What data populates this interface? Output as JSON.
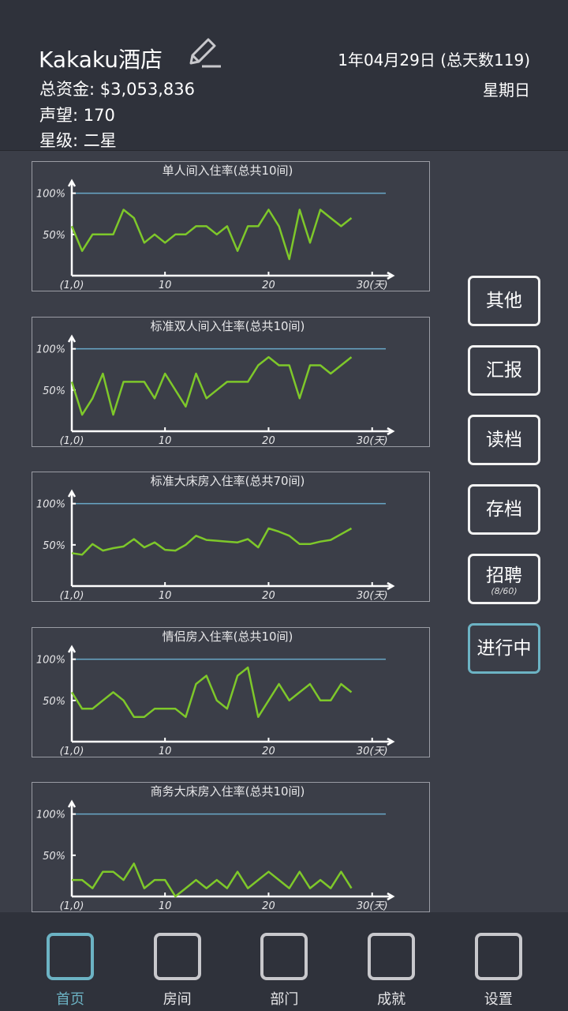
{
  "header": {
    "hotel_name": "Kakaku酒店",
    "funds": "总资金: $3,053,836",
    "reputation": "声望: 170",
    "rating": "星级: 二星",
    "date": "1年04月29日 (总天数119)",
    "weekday": "星期日"
  },
  "buttons": [
    "其他",
    "汇报",
    "读档",
    "存档",
    {
      "label": "招聘",
      "sub": "(8/60)"
    },
    "进行中"
  ],
  "nav": [
    "首页",
    "房间",
    "部门",
    "成就",
    "设置"
  ],
  "chart_data": [
    {
      "type": "line",
      "title": "单人间入住率(总共10间)",
      "color": "#7ec82a",
      "x": [
        1,
        2,
        3,
        4,
        5,
        6,
        7,
        8,
        9,
        10,
        11,
        12,
        13,
        14,
        15,
        16,
        17,
        18,
        19,
        20,
        21,
        22,
        23,
        24,
        25,
        26,
        27,
        28
      ],
      "values": [
        60,
        30,
        50,
        50,
        50,
        80,
        70,
        40,
        50,
        40,
        50,
        50,
        60,
        60,
        50,
        60,
        30,
        60,
        60,
        80,
        60,
        20,
        80,
        40,
        80,
        70,
        60,
        70
      ],
      "xlim": [
        1,
        32
      ],
      "ylim": [
        0,
        115
      ],
      "xticks": [
        {
          "value": 1,
          "label": "(1,0)"
        },
        10,
        20,
        {
          "value": 30,
          "label": "30(天)"
        }
      ],
      "yticks": [
        {
          "value": 50,
          "label": "50%"
        },
        {
          "value": 100,
          "label": "100%"
        }
      ]
    },
    {
      "type": "line",
      "title": "标准双人间入住率(总共10间)",
      "color": "#7ec82a",
      "x": [
        1,
        2,
        3,
        4,
        5,
        6,
        7,
        8,
        9,
        10,
        11,
        12,
        13,
        14,
        15,
        16,
        17,
        18,
        19,
        20,
        21,
        22,
        23,
        24,
        25,
        26,
        27,
        28
      ],
      "values": [
        60,
        20,
        40,
        70,
        20,
        60,
        60,
        60,
        40,
        70,
        50,
        30,
        70,
        40,
        50,
        60,
        60,
        60,
        80,
        90,
        80,
        80,
        40,
        80,
        80,
        70,
        80,
        90
      ],
      "xlim": [
        1,
        32
      ],
      "ylim": [
        0,
        115
      ],
      "xticks": [
        {
          "value": 1,
          "label": "(1,0)"
        },
        10,
        20,
        {
          "value": 30,
          "label": "30(天)"
        }
      ],
      "yticks": [
        {
          "value": 50,
          "label": "50%"
        },
        {
          "value": 100,
          "label": "100%"
        }
      ]
    },
    {
      "type": "line",
      "title": "标准大床房入住率(总共70间)",
      "color": "#7ec82a",
      "x": [
        1,
        2,
        3,
        4,
        5,
        6,
        7,
        8,
        9,
        10,
        11,
        12,
        13,
        14,
        15,
        16,
        17,
        18,
        19,
        20,
        21,
        22,
        23,
        24,
        25,
        26,
        27,
        28
      ],
      "values": [
        40,
        38,
        51,
        43,
        46,
        48,
        57,
        47,
        53,
        44,
        43,
        50,
        61,
        56,
        55,
        54,
        53,
        57,
        47,
        70,
        66,
        61,
        51,
        51,
        54,
        56,
        63,
        70
      ],
      "xlim": [
        1,
        32
      ],
      "ylim": [
        0,
        115
      ],
      "xticks": [
        {
          "value": 1,
          "label": "(1,0)"
        },
        10,
        20,
        {
          "value": 30,
          "label": "30(天)"
        }
      ],
      "yticks": [
        {
          "value": 50,
          "label": "50%"
        },
        {
          "value": 100,
          "label": "100%"
        }
      ]
    },
    {
      "type": "line",
      "title": "情侣房入住率(总共10间)",
      "color": "#7ec82a",
      "x": [
        1,
        2,
        3,
        4,
        5,
        6,
        7,
        8,
        9,
        10,
        11,
        12,
        13,
        14,
        15,
        16,
        17,
        18,
        19,
        20,
        21,
        22,
        23,
        24,
        25,
        26,
        27,
        28
      ],
      "values": [
        60,
        40,
        40,
        50,
        60,
        50,
        30,
        30,
        40,
        40,
        40,
        30,
        70,
        80,
        50,
        40,
        80,
        90,
        30,
        50,
        70,
        50,
        60,
        70,
        50,
        50,
        70,
        60
      ],
      "xlim": [
        1,
        32
      ],
      "ylim": [
        0,
        115
      ],
      "xticks": [
        {
          "value": 1,
          "label": "(1,0)"
        },
        10,
        20,
        {
          "value": 30,
          "label": "30(天)"
        }
      ],
      "yticks": [
        {
          "value": 50,
          "label": "50%"
        },
        {
          "value": 100,
          "label": "100%"
        }
      ]
    },
    {
      "type": "line",
      "title": "商务大床房入住率(总共10间)",
      "color": "#7ec82a",
      "x": [
        1,
        2,
        3,
        4,
        5,
        6,
        7,
        8,
        9,
        10,
        11,
        12,
        13,
        14,
        15,
        16,
        17,
        18,
        19,
        20,
        21,
        22,
        23,
        24,
        25,
        26,
        27,
        28
      ],
      "values": [
        20,
        20,
        10,
        30,
        30,
        20,
        40,
        10,
        20,
        20,
        0,
        10,
        20,
        10,
        20,
        10,
        30,
        10,
        20,
        30,
        20,
        10,
        30,
        10,
        20,
        10,
        30,
        10
      ],
      "xlim": [
        1,
        32
      ],
      "ylim": [
        0,
        115
      ],
      "xticks": [
        {
          "value": 1,
          "label": "(1,0)"
        },
        10,
        20,
        {
          "value": 30,
          "label": "30(天)"
        }
      ],
      "yticks": [
        {
          "value": 50,
          "label": "50%"
        },
        {
          "value": 100,
          "label": "100%"
        }
      ]
    }
  ]
}
